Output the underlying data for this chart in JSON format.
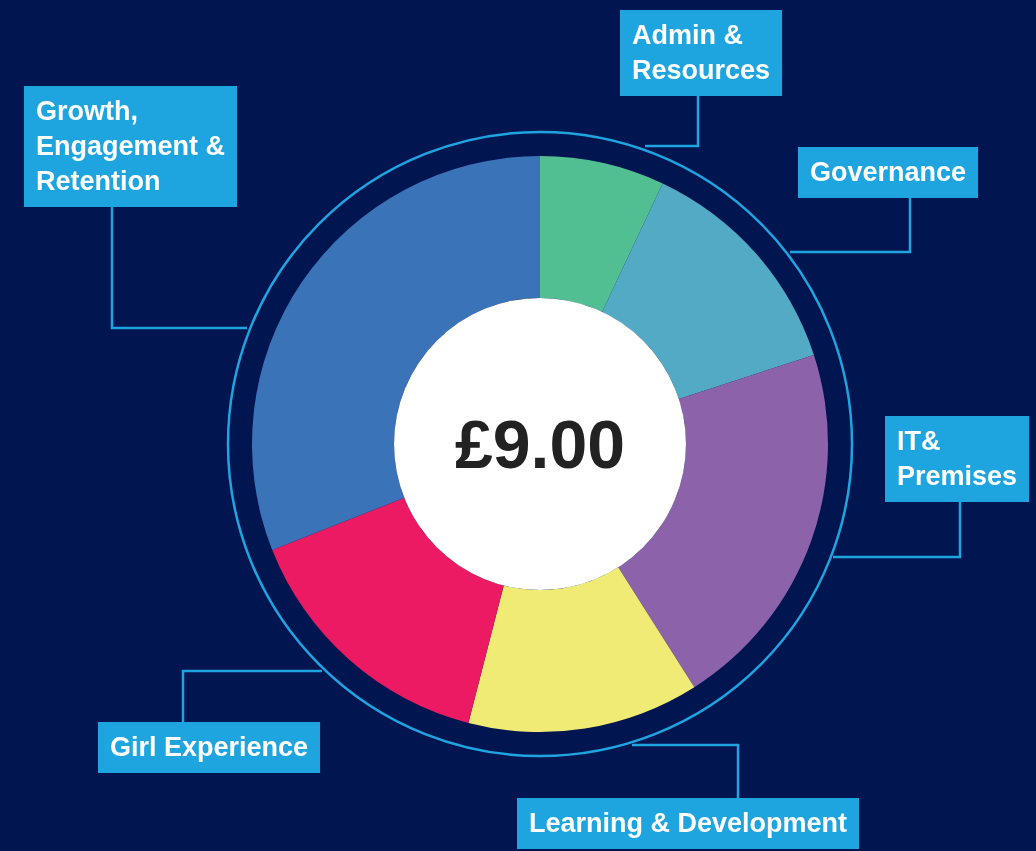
{
  "chart_data": {
    "type": "donut",
    "title": "£9.00",
    "categories": [
      "Admin & Resources",
      "Governance",
      "IT& Premises",
      "Learning & Development",
      "Girl Experience",
      "Growth, Engagement & Retention"
    ],
    "values": [
      7,
      13,
      21,
      13,
      15,
      31
    ],
    "colors": [
      "#52bf93",
      "#53aac4",
      "#8c63aa",
      "#efeb74",
      "#ec1a62",
      "#3b73b9"
    ]
  }
}
